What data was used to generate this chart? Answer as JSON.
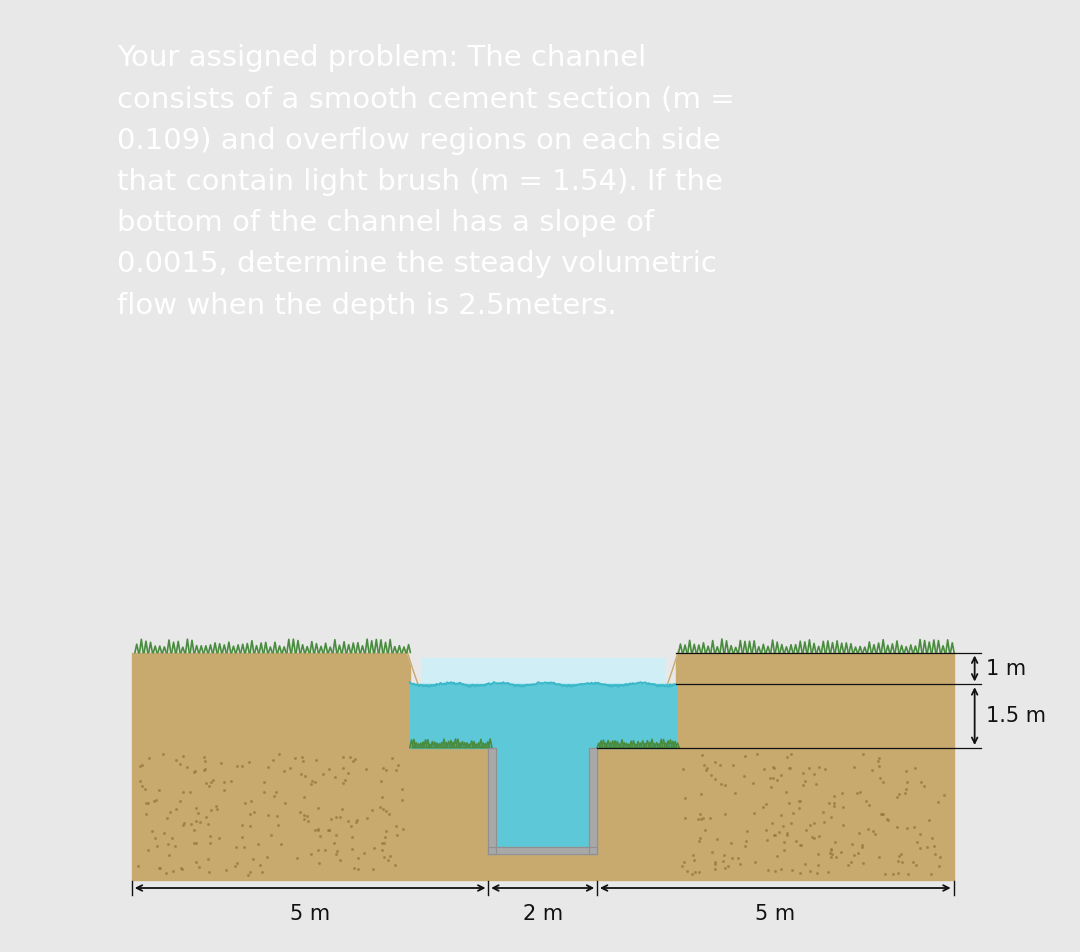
{
  "text_bg_color": "#5c4a35",
  "text_color": "#ffffff",
  "outer_bg_color": "#e8e8e8",
  "diagram_bg_color": "#ffffff",
  "problem_text": "Your assigned problem: The channel\nconsists of a smooth cement section (m =\n0.109) and overflow regions on each side\nthat contain light brush (m = 1.54). If the\nbottom of the channel has a slope of\n0.0015, determine the steady volumetric\nflow when the depth is 2.5meters.",
  "text_fontsize": 21,
  "soil_color": "#c8a96e",
  "soil_dark_color": "#b89458",
  "water_main_color": "#5cc8d8",
  "water_overflow_color": "#a8dce8",
  "water_top_color": "#d0eef5",
  "grass_color": "#4a8c3f",
  "cement_color": "#a8a8a8",
  "cement_dark_color": "#909090",
  "dim_line_color": "#111111",
  "label_1m": "1 m",
  "label_15m": "1.5 m",
  "label_5m_left": "5 m",
  "label_5m_right": "5 m",
  "label_2m": "2 m"
}
